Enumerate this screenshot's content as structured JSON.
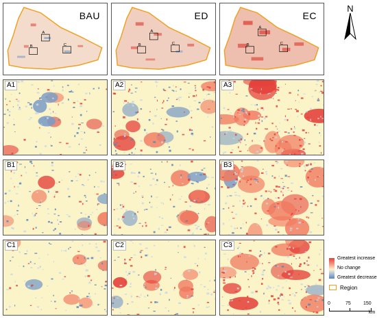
{
  "scenarios": [
    "BAU",
    "ED",
    "EC"
  ],
  "sub_regions": [
    "A1",
    "A2",
    "A3",
    "B1",
    "B2",
    "B3",
    "C1",
    "C2",
    "C3"
  ],
  "overview_box_labels": [
    "A",
    "B",
    "C"
  ],
  "north_label": "N",
  "legend": {
    "high": "Greatest increase",
    "mid": "No change",
    "low": "Greatest decrease",
    "region": "Region",
    "colors": {
      "high": "#e4413a",
      "mid": "#fbf4c8",
      "low": "#5b86bc",
      "region": "#f0a020"
    }
  },
  "scale": {
    "ticks": [
      "0",
      "75",
      "150"
    ],
    "unit": "km"
  }
}
